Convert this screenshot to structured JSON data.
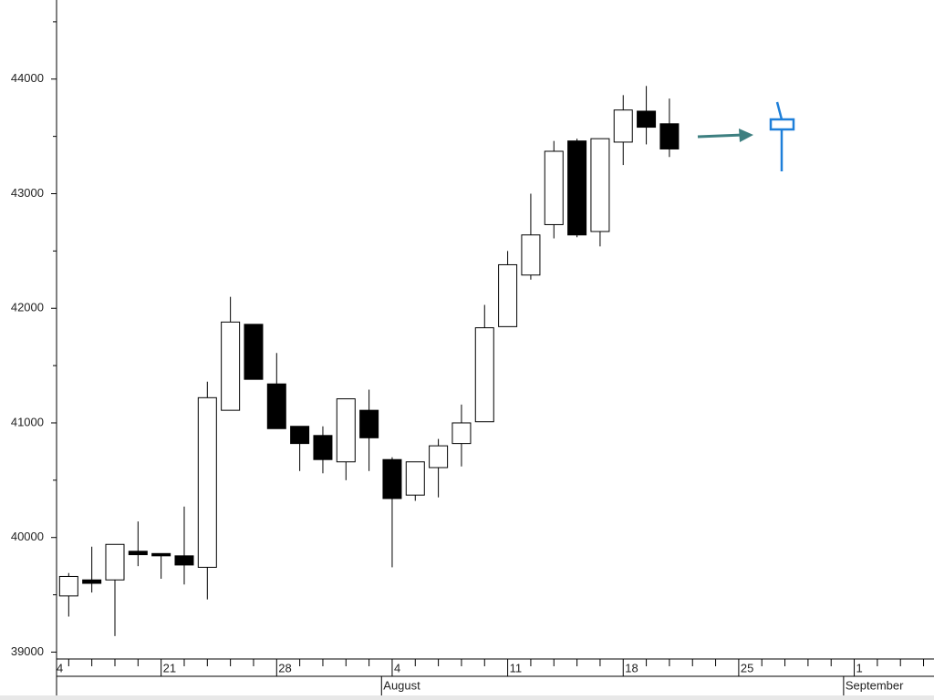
{
  "chart_data": {
    "type": "candlestick",
    "categories": [
      "4",
      null,
      null,
      null,
      null,
      "21",
      null,
      null,
      null,
      null,
      "28",
      null,
      null,
      null,
      null,
      "4",
      null,
      null,
      null,
      null,
      "11",
      null,
      null,
      null,
      null,
      "18",
      null,
      null,
      null,
      null,
      "25",
      null,
      null,
      null,
      null,
      "1",
      null,
      null,
      null
    ],
    "month_labels": [
      {
        "label": "August",
        "category": 15
      },
      {
        "label": "September",
        "category": 35
      }
    ],
    "open": [
      null,
      39490,
      39630,
      39630,
      39880,
      39860,
      39840,
      39740,
      41110,
      41860,
      41340,
      40970,
      40890,
      40660,
      41110,
      40680,
      40370,
      40610,
      40820,
      41010,
      41840,
      42290,
      42730,
      43460,
      42670,
      43450,
      43720,
      43610,
      null,
      null,
      null,
      null,
      null,
      null,
      null,
      null,
      null,
      null,
      null
    ],
    "high": [
      null,
      39690,
      39920,
      39940,
      40140,
      39860,
      40270,
      41360,
      42100,
      41860,
      41610,
      40970,
      40970,
      41210,
      41290,
      40700,
      40660,
      40860,
      41160,
      42030,
      42500,
      43000,
      43460,
      43480,
      43480,
      43860,
      43940,
      43830,
      null,
      null,
      null,
      null,
      null,
      null,
      null,
      null,
      null,
      null,
      null
    ],
    "low": [
      null,
      39310,
      39520,
      39140,
      39750,
      39640,
      39590,
      39460,
      41110,
      41380,
      40950,
      40580,
      40560,
      40500,
      40580,
      39740,
      40320,
      40350,
      40620,
      41010,
      41840,
      42250,
      42610,
      42620,
      42540,
      43250,
      43430,
      43320,
      null,
      null,
      null,
      null,
      null,
      null,
      null,
      null,
      null,
      null,
      null
    ],
    "close": [
      null,
      39660,
      39600,
      39940,
      39850,
      39840,
      39760,
      41220,
      41880,
      41380,
      40950,
      40820,
      40680,
      41210,
      40870,
      40340,
      40660,
      40800,
      41000,
      41830,
      42380,
      42640,
      43370,
      42640,
      43480,
      43730,
      43580,
      43390,
      null,
      null,
      null,
      null,
      null,
      null,
      null,
      null,
      null,
      null,
      null
    ],
    "up_color": "#ffffff",
    "down_color": "#000000",
    "outline_color": "#000000",
    "ylim": [
      38940,
      44690
    ],
    "yticks": [
      39000,
      40000,
      41000,
      42000,
      43000,
      44000
    ],
    "yticks_minor": [
      39500,
      40500,
      41500,
      42500,
      43500,
      44500
    ]
  }
}
